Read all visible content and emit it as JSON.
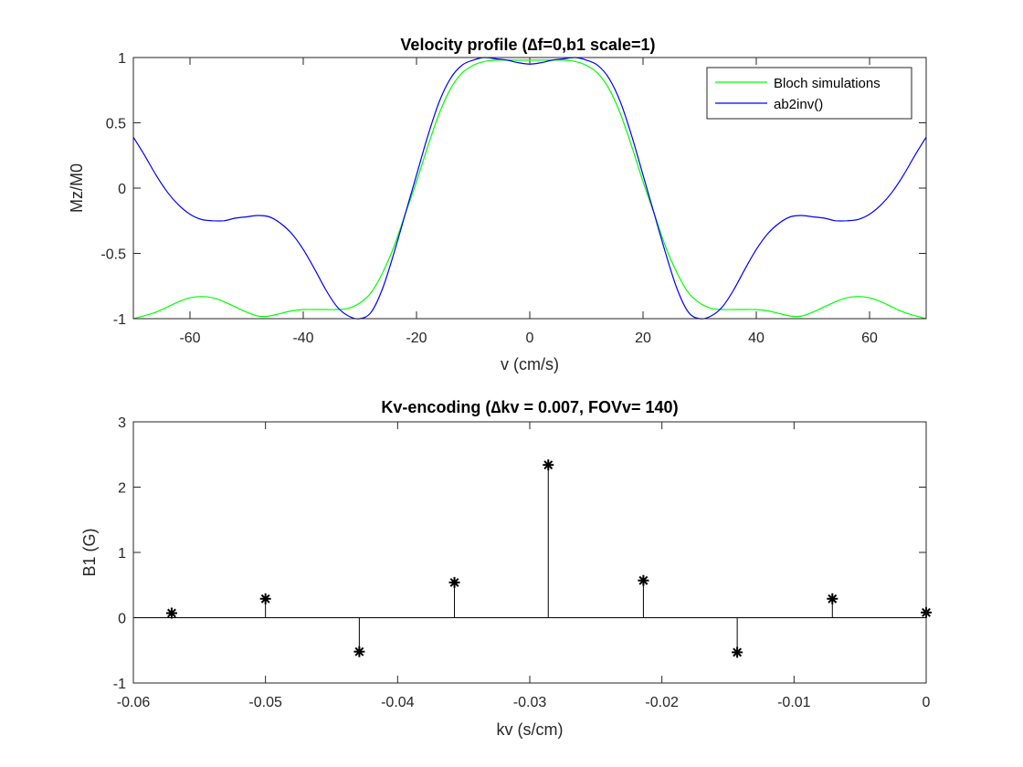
{
  "chart_data": [
    {
      "type": "line",
      "title": "Velocity profile (∆f=0,b1 scale=1)",
      "xlabel": "v (cm/s)",
      "ylabel": "Mz/M0",
      "xlim": [
        -70,
        70
      ],
      "ylim": [
        -1,
        1
      ],
      "xticks": [
        -60,
        -40,
        -20,
        0,
        20,
        40,
        60
      ],
      "xtick_labels": [
        "-60",
        "-40",
        "-20",
        "0",
        "20",
        "40",
        "60"
      ],
      "yticks": [
        -1,
        -0.5,
        0,
        0.5,
        1
      ],
      "ytick_labels": [
        "-1",
        "-0.5",
        "0",
        "0.5",
        "1"
      ],
      "grid": false,
      "legend_position": "top-right",
      "series": [
        {
          "name": "Bloch simulations",
          "color": "#00ff00",
          "x": [
            -70,
            -66,
            -62,
            -60,
            -58,
            -56,
            -54,
            -52,
            -50,
            -48,
            -46,
            -44,
            -42,
            -40,
            -38,
            -36,
            -34,
            -32,
            -30,
            -28,
            -26,
            -24,
            -22,
            -20,
            -18,
            -16,
            -14,
            -12,
            -10,
            -8,
            -6,
            -4,
            -2,
            0,
            2,
            4,
            6,
            8,
            10,
            12,
            14,
            16,
            18,
            20,
            22,
            24,
            26,
            28,
            30,
            32,
            34,
            36,
            38,
            40,
            42,
            44,
            46,
            48,
            50,
            52,
            54,
            56,
            58,
            60,
            62,
            66,
            70
          ],
          "y": [
            -1.0,
            -0.95,
            -0.87,
            -0.84,
            -0.83,
            -0.84,
            -0.87,
            -0.91,
            -0.95,
            -0.98,
            -0.98,
            -0.96,
            -0.94,
            -0.93,
            -0.93,
            -0.93,
            -0.93,
            -0.92,
            -0.88,
            -0.8,
            -0.65,
            -0.45,
            -0.2,
            0.05,
            0.32,
            0.57,
            0.76,
            0.88,
            0.94,
            0.97,
            0.98,
            0.98,
            0.98,
            0.98,
            0.98,
            0.98,
            0.98,
            0.97,
            0.94,
            0.88,
            0.76,
            0.57,
            0.32,
            0.05,
            -0.2,
            -0.45,
            -0.65,
            -0.8,
            -0.88,
            -0.92,
            -0.93,
            -0.93,
            -0.93,
            -0.93,
            -0.94,
            -0.96,
            -0.98,
            -0.98,
            -0.95,
            -0.91,
            -0.87,
            -0.84,
            -0.83,
            -0.84,
            -0.87,
            -0.95,
            -1.0
          ]
        },
        {
          "name": "ab2inv()",
          "color": "#0000ff",
          "x": [
            -70,
            -68,
            -66,
            -64,
            -62,
            -60,
            -58,
            -56,
            -54,
            -52,
            -50,
            -48,
            -46,
            -44,
            -42,
            -40,
            -38,
            -36,
            -34,
            -32,
            -30,
            -28,
            -26,
            -24,
            -22,
            -20,
            -18,
            -16,
            -14,
            -12,
            -10,
            -8,
            -6,
            -4,
            -2,
            0,
            2,
            4,
            6,
            8,
            10,
            12,
            14,
            16,
            18,
            20,
            22,
            24,
            26,
            28,
            30,
            32,
            34,
            36,
            38,
            40,
            42,
            44,
            46,
            48,
            50,
            52,
            54,
            56,
            58,
            60,
            62,
            64,
            66,
            68,
            70
          ],
          "y": [
            0.39,
            0.25,
            0.1,
            -0.03,
            -0.13,
            -0.2,
            -0.24,
            -0.25,
            -0.25,
            -0.23,
            -0.22,
            -0.21,
            -0.22,
            -0.27,
            -0.35,
            -0.47,
            -0.62,
            -0.78,
            -0.91,
            -0.98,
            -1.0,
            -0.95,
            -0.77,
            -0.5,
            -0.2,
            0.1,
            0.4,
            0.66,
            0.84,
            0.94,
            0.98,
            1.0,
            0.99,
            0.98,
            0.96,
            0.95,
            0.96,
            0.98,
            0.99,
            1.0,
            0.98,
            0.94,
            0.84,
            0.66,
            0.4,
            0.1,
            -0.2,
            -0.5,
            -0.77,
            -0.95,
            -1.0,
            -0.98,
            -0.91,
            -0.78,
            -0.62,
            -0.47,
            -0.35,
            -0.27,
            -0.22,
            -0.21,
            -0.22,
            -0.23,
            -0.25,
            -0.25,
            -0.24,
            -0.2,
            -0.13,
            -0.03,
            0.1,
            0.25,
            0.39
          ]
        }
      ]
    },
    {
      "type": "stem",
      "title": "Kv-encoding (∆kv = 0.007, FOVv= 140)",
      "xlabel": "kv (s/cm)",
      "ylabel": "B1 (G)",
      "xlim": [
        -0.06,
        0
      ],
      "ylim": [
        -1,
        3
      ],
      "xticks": [
        -0.06,
        -0.05,
        -0.04,
        -0.03,
        -0.02,
        -0.01,
        0
      ],
      "xtick_labels": [
        "-0.06",
        "-0.05",
        "-0.04",
        "-0.03",
        "-0.02",
        "-0.01",
        "0"
      ],
      "yticks": [
        -1,
        0,
        1,
        2,
        3
      ],
      "ytick_labels": [
        "-1",
        "0",
        "1",
        "2",
        "3"
      ],
      "grid": false,
      "series": [
        {
          "color": "#000000",
          "marker": "*",
          "x": [
            -0.0571,
            -0.05,
            -0.0429,
            -0.0357,
            -0.0286,
            -0.0214,
            -0.0143,
            -0.0071,
            0.0
          ],
          "y": [
            0.07,
            0.29,
            -0.52,
            0.54,
            2.34,
            0.57,
            -0.53,
            0.29,
            0.08
          ]
        }
      ]
    }
  ]
}
